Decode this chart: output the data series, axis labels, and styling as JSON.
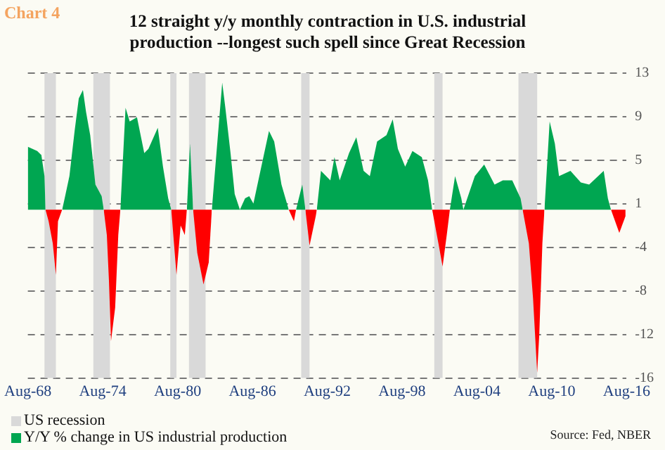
{
  "chart_data": {
    "type": "area",
    "title": "12 straight y/y monthly contraction in U.S. industrial production --longest such spell since Great Recession",
    "annotations": [
      "Chart 4",
      "Source: Fed, NBER"
    ],
    "x": [
      "1968-08",
      "1969-05",
      "1969-09",
      "1969-12",
      "1970-01",
      "1970-04",
      "1970-08",
      "1970-11",
      "1971-01",
      "1971-05",
      "1971-07",
      "1971-12",
      "1972-05",
      "1972-09",
      "1973-01",
      "1973-04",
      "1973-08",
      "1974-01",
      "1974-07",
      "1974-09",
      "1974-12",
      "1975-02",
      "1975-04",
      "1975-08",
      "1975-11",
      "1976-01",
      "1976-06",
      "1976-10",
      "1977-05",
      "1977-12",
      "1978-04",
      "1979-01",
      "1979-06",
      "1979-11",
      "1980-02",
      "1980-07",
      "1980-11",
      "1981-03",
      "1981-05",
      "1981-08",
      "1981-11",
      "1982-03",
      "1982-09",
      "1983-02",
      "1983-05",
      "1984-03",
      "1984-06",
      "1984-11",
      "1985-03",
      "1985-08",
      "1986-01",
      "1986-05",
      "1986-09",
      "1987-12",
      "1988-05",
      "1988-12",
      "1989-07",
      "1989-12",
      "1990-02",
      "1990-08",
      "1990-11",
      "1991-03",
      "1991-09",
      "1991-10",
      "1992-02",
      "1992-11",
      "1993-03",
      "1993-08",
      "1994-05",
      "1994-12",
      "1995-07",
      "1996-01",
      "1996-08",
      "1997-05",
      "1997-11",
      "1998-04",
      "1998-11",
      "1999-06",
      "2000-03",
      "2000-09",
      "2001-01",
      "2001-07",
      "2001-11",
      "2002-03",
      "2002-06",
      "2002-11",
      "2003-05",
      "2003-07",
      "2004-06",
      "2005-03",
      "2006-01",
      "2006-09",
      "2007-06",
      "2008-02",
      "2008-04",
      "2008-10",
      "2009-02",
      "2009-06",
      "2009-08",
      "2009-11",
      "2010-01",
      "2010-06",
      "2010-11",
      "2011-03",
      "2012-02",
      "2012-12",
      "2013-08",
      "2014-10",
      "2015-02",
      "2015-05",
      "2016-01",
      "2016-07"
    ],
    "series": [
      {
        "name": "Y/Y % change in US industrial production",
        "color": "#00a651",
        "values": [
          6.0,
          5.6,
          5.2,
          3.2,
          0,
          null,
          null,
          null,
          null,
          0,
          0.9,
          3.2,
          7.5,
          10.6,
          11.4,
          9.3,
          7.1,
          2.4,
          1.3,
          0,
          null,
          null,
          null,
          null,
          null,
          0,
          9.7,
          8.4,
          8.8,
          5.4,
          5.8,
          7.8,
          4.1,
          1.1,
          0,
          null,
          null,
          null,
          0,
          6.3,
          0,
          null,
          null,
          null,
          0,
          12.1,
          9.7,
          5.4,
          1.5,
          0,
          1.1,
          1.3,
          0.6,
          7.5,
          6.5,
          2.4,
          0,
          null,
          0,
          2.4,
          0,
          null,
          null,
          0,
          3.7,
          2.8,
          5.0,
          2.8,
          5.4,
          6.9,
          3.7,
          3.2,
          6.5,
          7.1,
          8.6,
          5.8,
          4.1,
          5.6,
          5.0,
          2.8,
          0,
          null,
          null,
          null,
          0,
          3.2,
          1.1,
          0,
          3.2,
          4.3,
          2.4,
          2.8,
          2.8,
          1.1,
          0,
          null,
          null,
          null,
          null,
          null,
          0,
          8.4,
          6.3,
          3.2,
          3.7,
          2.6,
          2.4,
          3.7,
          1.1,
          0,
          null,
          null
        ]
      },
      {
        "color": "#ff0000",
        "values": [
          null,
          null,
          null,
          null,
          0,
          -1.1,
          -3.2,
          -6.2,
          -1.1,
          0,
          null,
          null,
          null,
          null,
          null,
          null,
          null,
          null,
          null,
          0,
          -2.4,
          -6.7,
          -12.5,
          -9.3,
          -2.4,
          0,
          null,
          null,
          null,
          null,
          null,
          null,
          null,
          null,
          0,
          -6.2,
          -1.5,
          -2.4,
          0,
          null,
          0,
          -4.1,
          -7.1,
          -5.0,
          0,
          null,
          null,
          null,
          null,
          null,
          null,
          null,
          null,
          null,
          null,
          null,
          0,
          -1.1,
          0,
          null,
          0,
          -3.4,
          -0.6,
          0,
          null,
          null,
          null,
          null,
          null,
          null,
          null,
          null,
          null,
          null,
          null,
          null,
          null,
          null,
          null,
          null,
          0,
          -3.2,
          -5.4,
          -2.4,
          0,
          null,
          null,
          null,
          null,
          null,
          null,
          null,
          null,
          null,
          0,
          -3.2,
          -8.4,
          -15.5,
          -11.9,
          -3.2,
          0,
          null,
          null,
          null,
          null,
          null,
          null,
          null,
          null,
          0,
          -2.2,
          -0.6
        ]
      }
    ],
    "bands": [
      {
        "axis": "x",
        "from": "1969-12",
        "to": "1970-11",
        "label": "US recession",
        "color": "#d9d9d9"
      },
      {
        "axis": "x",
        "from": "1973-11",
        "to": "1975-03",
        "color": "#d9d9d9"
      },
      {
        "axis": "x",
        "from": "1980-01",
        "to": "1980-07",
        "color": "#d9d9d9"
      },
      {
        "axis": "x",
        "from": "1981-07",
        "to": "1982-11",
        "color": "#d9d9d9"
      },
      {
        "axis": "x",
        "from": "1990-07",
        "to": "1991-03",
        "color": "#d9d9d9"
      },
      {
        "axis": "x",
        "from": "2001-03",
        "to": "2001-11",
        "color": "#d9d9d9"
      },
      {
        "axis": "x",
        "from": "2007-12",
        "to": "2009-06",
        "color": "#d9d9d9"
      }
    ],
    "xlim": [
      "1968-08",
      "2016-08"
    ],
    "xticks": [
      {
        "value": "1968-08",
        "label": "Aug-68"
      },
      {
        "value": "1974-08",
        "label": "Aug-74"
      },
      {
        "value": "1980-08",
        "label": "Aug-80"
      },
      {
        "value": "1986-08",
        "label": "Aug-86"
      },
      {
        "value": "1992-08",
        "label": "Aug-92"
      },
      {
        "value": "1998-08",
        "label": "Aug-98"
      },
      {
        "value": "2004-08",
        "label": "Aug-04"
      },
      {
        "value": "2010-08",
        "label": "Aug-10"
      },
      {
        "value": "2016-08",
        "label": "Aug-16"
      }
    ],
    "ylim": [
      -16,
      13
    ],
    "yticks": [
      13,
      {
        "value": 8.86,
        "label": "9"
      },
      {
        "value": 4.71,
        "label": "5"
      },
      {
        "value": 0.57,
        "label": "1"
      },
      {
        "value": -3.57,
        "label": "-4"
      },
      {
        "value": -7.71,
        "label": "-8"
      },
      {
        "value": -11.86,
        "label": "-12"
      },
      -16
    ],
    "grid": "y",
    "legend": "bottom left"
  }
}
